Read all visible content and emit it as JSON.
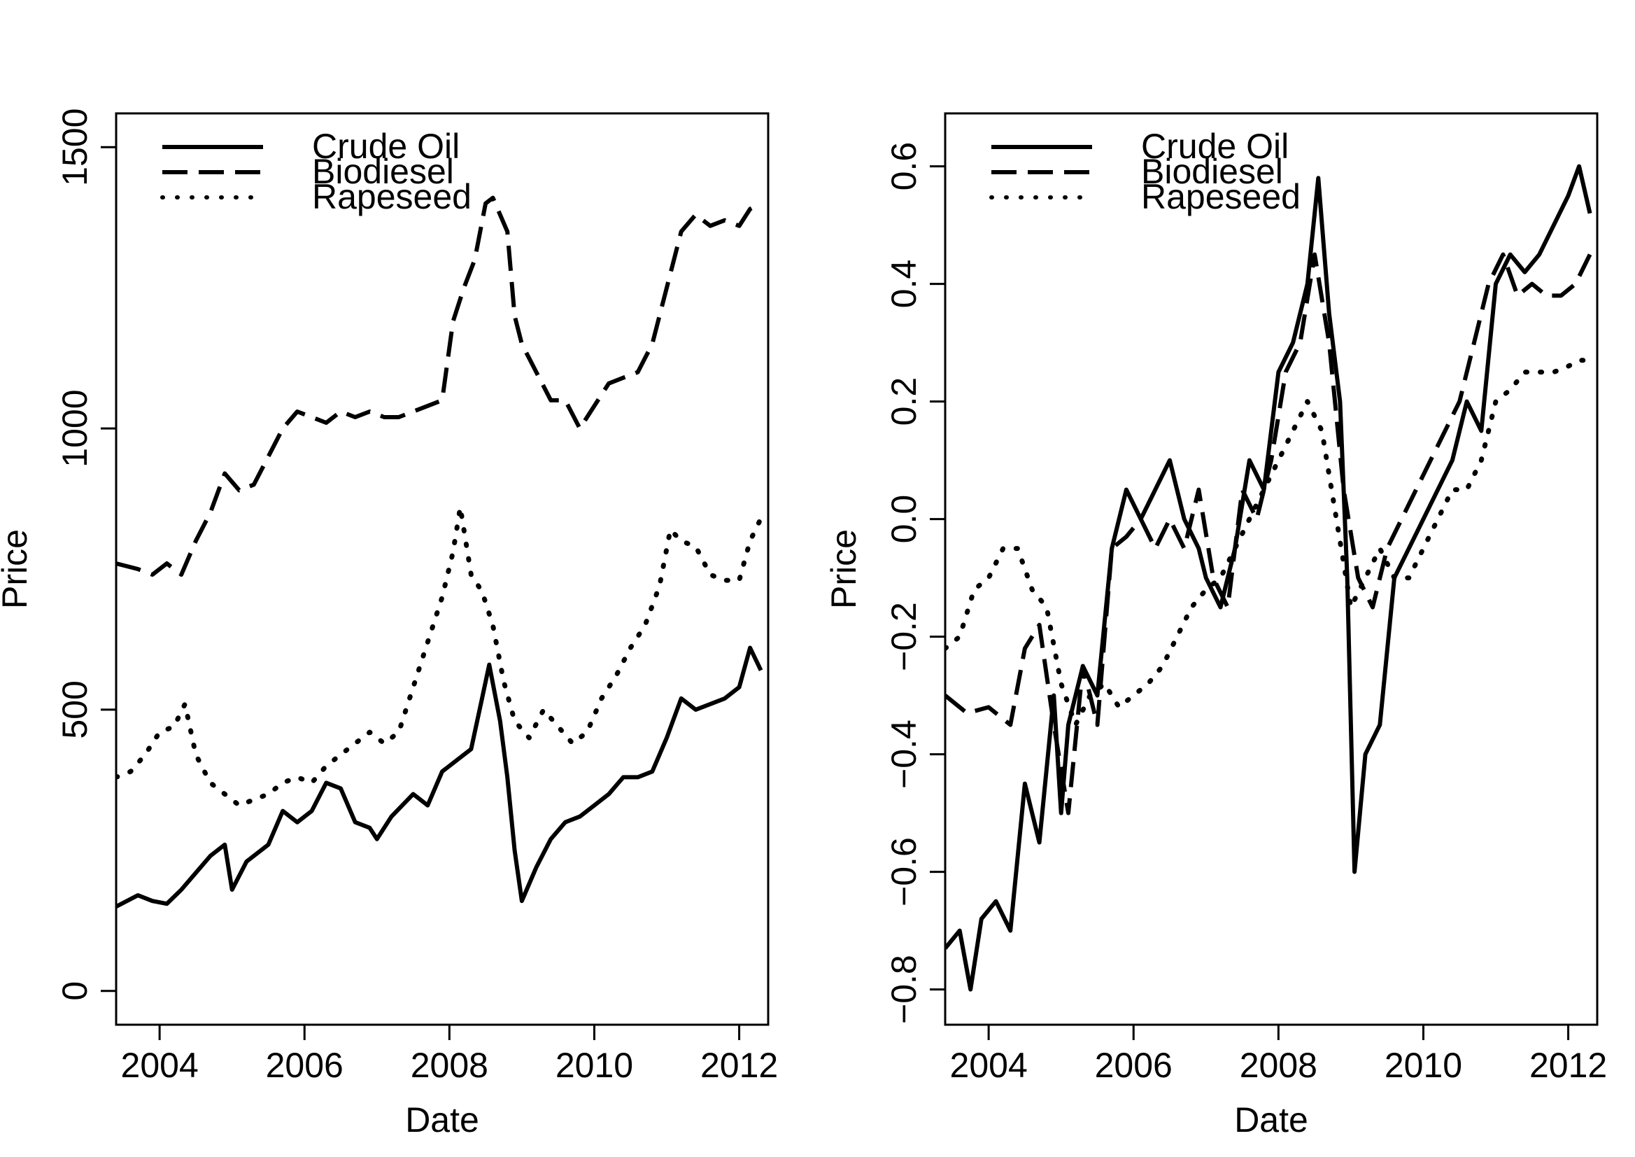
{
  "chart_data": [
    {
      "type": "line",
      "xlabel": "Date",
      "ylabel": "Price",
      "xlim": [
        2003.4,
        2012.4
      ],
      "ylim": [
        -60,
        1560
      ],
      "xticks": [
        2004,
        2006,
        2008,
        2010,
        2012
      ],
      "xtick_labels": [
        "2004",
        "2006",
        "2008",
        "2010",
        "2012"
      ],
      "yticks": [
        0,
        500,
        1000,
        1500
      ],
      "ytick_labels": [
        "0",
        "500",
        "1000",
        "1500"
      ],
      "legend_position": "top-left",
      "series": [
        {
          "name": "Crude Oil",
          "style": "solid",
          "x": [
            2003.4,
            2003.7,
            2003.9,
            2004.1,
            2004.3,
            2004.5,
            2004.7,
            2004.9,
            2005.0,
            2005.2,
            2005.5,
            2005.7,
            2005.9,
            2006.1,
            2006.3,
            2006.5,
            2006.7,
            2006.9,
            2007.0,
            2007.2,
            2007.5,
            2007.7,
            2007.9,
            2008.1,
            2008.3,
            2008.45,
            2008.55,
            2008.7,
            2008.8,
            2008.9,
            2009.0,
            2009.2,
            2009.4,
            2009.6,
            2009.8,
            2010.0,
            2010.2,
            2010.4,
            2010.6,
            2010.8,
            2011.0,
            2011.2,
            2011.4,
            2011.6,
            2011.8,
            2012.0,
            2012.15,
            2012.3
          ],
          "y": [
            150,
            170,
            160,
            155,
            180,
            210,
            240,
            260,
            180,
            230,
            260,
            320,
            300,
            320,
            370,
            360,
            300,
            290,
            270,
            310,
            350,
            330,
            390,
            410,
            430,
            520,
            580,
            480,
            380,
            250,
            160,
            220,
            270,
            300,
            310,
            330,
            350,
            380,
            380,
            390,
            450,
            520,
            500,
            510,
            520,
            540,
            610,
            570
          ]
        },
        {
          "name": "Biodiesel",
          "style": "dashed",
          "x": [
            2003.4,
            2003.7,
            2003.9,
            2004.1,
            2004.3,
            2004.5,
            2004.7,
            2004.9,
            2005.1,
            2005.3,
            2005.5,
            2005.7,
            2005.9,
            2006.1,
            2006.3,
            2006.5,
            2006.7,
            2006.9,
            2007.1,
            2007.3,
            2007.5,
            2007.7,
            2007.9,
            2008.05,
            2008.2,
            2008.35,
            2008.5,
            2008.6,
            2008.7,
            2008.8,
            2008.9,
            2009.0,
            2009.2,
            2009.4,
            2009.6,
            2009.8,
            2010.0,
            2010.2,
            2010.4,
            2010.6,
            2010.8,
            2011.0,
            2011.2,
            2011.4,
            2011.6,
            2011.8,
            2012.0,
            2012.15,
            2012.3
          ],
          "y": [
            760,
            750,
            740,
            760,
            740,
            800,
            850,
            920,
            890,
            900,
            950,
            1000,
            1030,
            1020,
            1010,
            1030,
            1020,
            1030,
            1020,
            1020,
            1030,
            1040,
            1050,
            1190,
            1250,
            1300,
            1400,
            1410,
            1380,
            1350,
            1200,
            1150,
            1100,
            1050,
            1050,
            1000,
            1040,
            1080,
            1090,
            1100,
            1150,
            1250,
            1350,
            1380,
            1360,
            1370,
            1360,
            1390,
            1400
          ]
        },
        {
          "name": "Rapeseed",
          "style": "dotted",
          "x": [
            2003.4,
            2003.6,
            2003.8,
            2004.0,
            2004.2,
            2004.35,
            2004.5,
            2004.7,
            2004.9,
            2005.1,
            2005.3,
            2005.5,
            2005.7,
            2005.9,
            2006.1,
            2006.3,
            2006.5,
            2006.7,
            2006.9,
            2007.1,
            2007.3,
            2007.5,
            2007.7,
            2007.9,
            2008.05,
            2008.15,
            2008.3,
            2008.45,
            2008.6,
            2008.75,
            2008.9,
            2009.1,
            2009.3,
            2009.5,
            2009.7,
            2009.9,
            2010.1,
            2010.3,
            2010.5,
            2010.7,
            2010.9,
            2011.05,
            2011.2,
            2011.4,
            2011.6,
            2011.8,
            2012.0,
            2012.15,
            2012.3
          ],
          "y": [
            380,
            390,
            420,
            460,
            470,
            510,
            420,
            370,
            350,
            330,
            340,
            350,
            370,
            380,
            370,
            400,
            420,
            440,
            460,
            440,
            460,
            540,
            620,
            700,
            780,
            860,
            740,
            710,
            650,
            550,
            480,
            450,
            500,
            470,
            440,
            460,
            520,
            560,
            610,
            650,
            720,
            820,
            800,
            790,
            740,
            730,
            730,
            800,
            840
          ]
        }
      ]
    },
    {
      "type": "line",
      "xlabel": "Date",
      "ylabel": "Price",
      "xlim": [
        2003.4,
        2012.4
      ],
      "ylim": [
        -0.86,
        0.69
      ],
      "xticks": [
        2004,
        2006,
        2008,
        2010,
        2012
      ],
      "xtick_labels": [
        "2004",
        "2006",
        "2008",
        "2010",
        "2012"
      ],
      "yticks": [
        -0.8,
        -0.6,
        -0.4,
        -0.2,
        0.0,
        0.2,
        0.4,
        0.6
      ],
      "ytick_labels": [
        "−0.8",
        "−0.6",
        "−0.4",
        "−0.2",
        "0.0",
        "0.2",
        "0.4",
        "0.6"
      ],
      "legend_position": "top-left",
      "series": [
        {
          "name": "Crude Oil",
          "style": "solid",
          "x": [
            2003.4,
            2003.6,
            2003.75,
            2003.9,
            2004.1,
            2004.3,
            2004.5,
            2004.7,
            2004.9,
            2005.0,
            2005.1,
            2005.3,
            2005.5,
            2005.7,
            2005.9,
            2006.1,
            2006.3,
            2006.5,
            2006.7,
            2006.9,
            2007.0,
            2007.2,
            2007.4,
            2007.6,
            2007.8,
            2008.0,
            2008.2,
            2008.4,
            2008.55,
            2008.7,
            2008.85,
            2008.95,
            2009.05,
            2009.2,
            2009.4,
            2009.6,
            2009.8,
            2010.0,
            2010.2,
            2010.4,
            2010.6,
            2010.8,
            2011.0,
            2011.2,
            2011.4,
            2011.6,
            2011.8,
            2012.0,
            2012.15,
            2012.3
          ],
          "y": [
            -0.73,
            -0.7,
            -0.8,
            -0.68,
            -0.65,
            -0.7,
            -0.45,
            -0.55,
            -0.3,
            -0.5,
            -0.35,
            -0.25,
            -0.3,
            -0.05,
            0.05,
            0.0,
            0.05,
            0.1,
            0.0,
            -0.05,
            -0.1,
            -0.15,
            -0.05,
            0.1,
            0.05,
            0.25,
            0.3,
            0.4,
            0.58,
            0.35,
            0.2,
            -0.1,
            -0.6,
            -0.4,
            -0.35,
            -0.1,
            -0.05,
            0.0,
            0.05,
            0.1,
            0.2,
            0.15,
            0.4,
            0.45,
            0.42,
            0.45,
            0.5,
            0.55,
            0.6,
            0.52
          ]
        },
        {
          "name": "Biodiesel",
          "style": "dashed",
          "x": [
            2003.4,
            2003.7,
            2004.0,
            2004.3,
            2004.5,
            2004.7,
            2004.9,
            2005.1,
            2005.3,
            2005.5,
            2005.7,
            2005.9,
            2006.1,
            2006.3,
            2006.5,
            2006.7,
            2006.9,
            2007.1,
            2007.3,
            2007.5,
            2007.7,
            2007.9,
            2008.1,
            2008.3,
            2008.5,
            2008.7,
            2008.9,
            2009.1,
            2009.3,
            2009.5,
            2009.7,
            2009.9,
            2010.1,
            2010.3,
            2010.5,
            2010.7,
            2010.9,
            2011.1,
            2011.3,
            2011.5,
            2011.7,
            2011.9,
            2012.1,
            2012.3
          ],
          "y": [
            -0.3,
            -0.33,
            -0.32,
            -0.35,
            -0.22,
            -0.18,
            -0.35,
            -0.5,
            -0.25,
            -0.35,
            -0.05,
            -0.03,
            0.0,
            -0.05,
            0.0,
            -0.05,
            0.05,
            -0.1,
            -0.15,
            0.05,
            0.0,
            0.1,
            0.25,
            0.3,
            0.45,
            0.3,
            0.05,
            -0.1,
            -0.15,
            -0.05,
            0.0,
            0.05,
            0.1,
            0.15,
            0.2,
            0.3,
            0.4,
            0.45,
            0.38,
            0.4,
            0.38,
            0.38,
            0.4,
            0.45
          ]
        },
        {
          "name": "Rapeseed",
          "style": "dotted",
          "x": [
            2003.4,
            2003.6,
            2003.8,
            2004.0,
            2004.2,
            2004.4,
            2004.6,
            2004.8,
            2005.0,
            2005.2,
            2005.4,
            2005.6,
            2005.8,
            2006.0,
            2006.2,
            2006.4,
            2006.6,
            2006.8,
            2007.0,
            2007.2,
            2007.4,
            2007.6,
            2007.8,
            2008.0,
            2008.2,
            2008.4,
            2008.6,
            2008.8,
            2009.0,
            2009.2,
            2009.4,
            2009.6,
            2009.8,
            2010.0,
            2010.2,
            2010.4,
            2010.6,
            2010.8,
            2011.0,
            2011.2,
            2011.4,
            2011.6,
            2011.8,
            2012.0,
            2012.15,
            2012.3
          ],
          "y": [
            -0.22,
            -0.2,
            -0.12,
            -0.1,
            -0.05,
            -0.05,
            -0.12,
            -0.15,
            -0.28,
            -0.35,
            -0.3,
            -0.28,
            -0.32,
            -0.3,
            -0.28,
            -0.25,
            -0.2,
            -0.15,
            -0.12,
            -0.1,
            -0.05,
            0.0,
            0.05,
            0.1,
            0.15,
            0.2,
            0.15,
            0.0,
            -0.15,
            -0.1,
            -0.05,
            -0.1,
            -0.1,
            -0.05,
            0.0,
            0.05,
            0.05,
            0.1,
            0.2,
            0.22,
            0.25,
            0.25,
            0.25,
            0.26,
            0.27,
            0.27
          ]
        }
      ]
    }
  ]
}
